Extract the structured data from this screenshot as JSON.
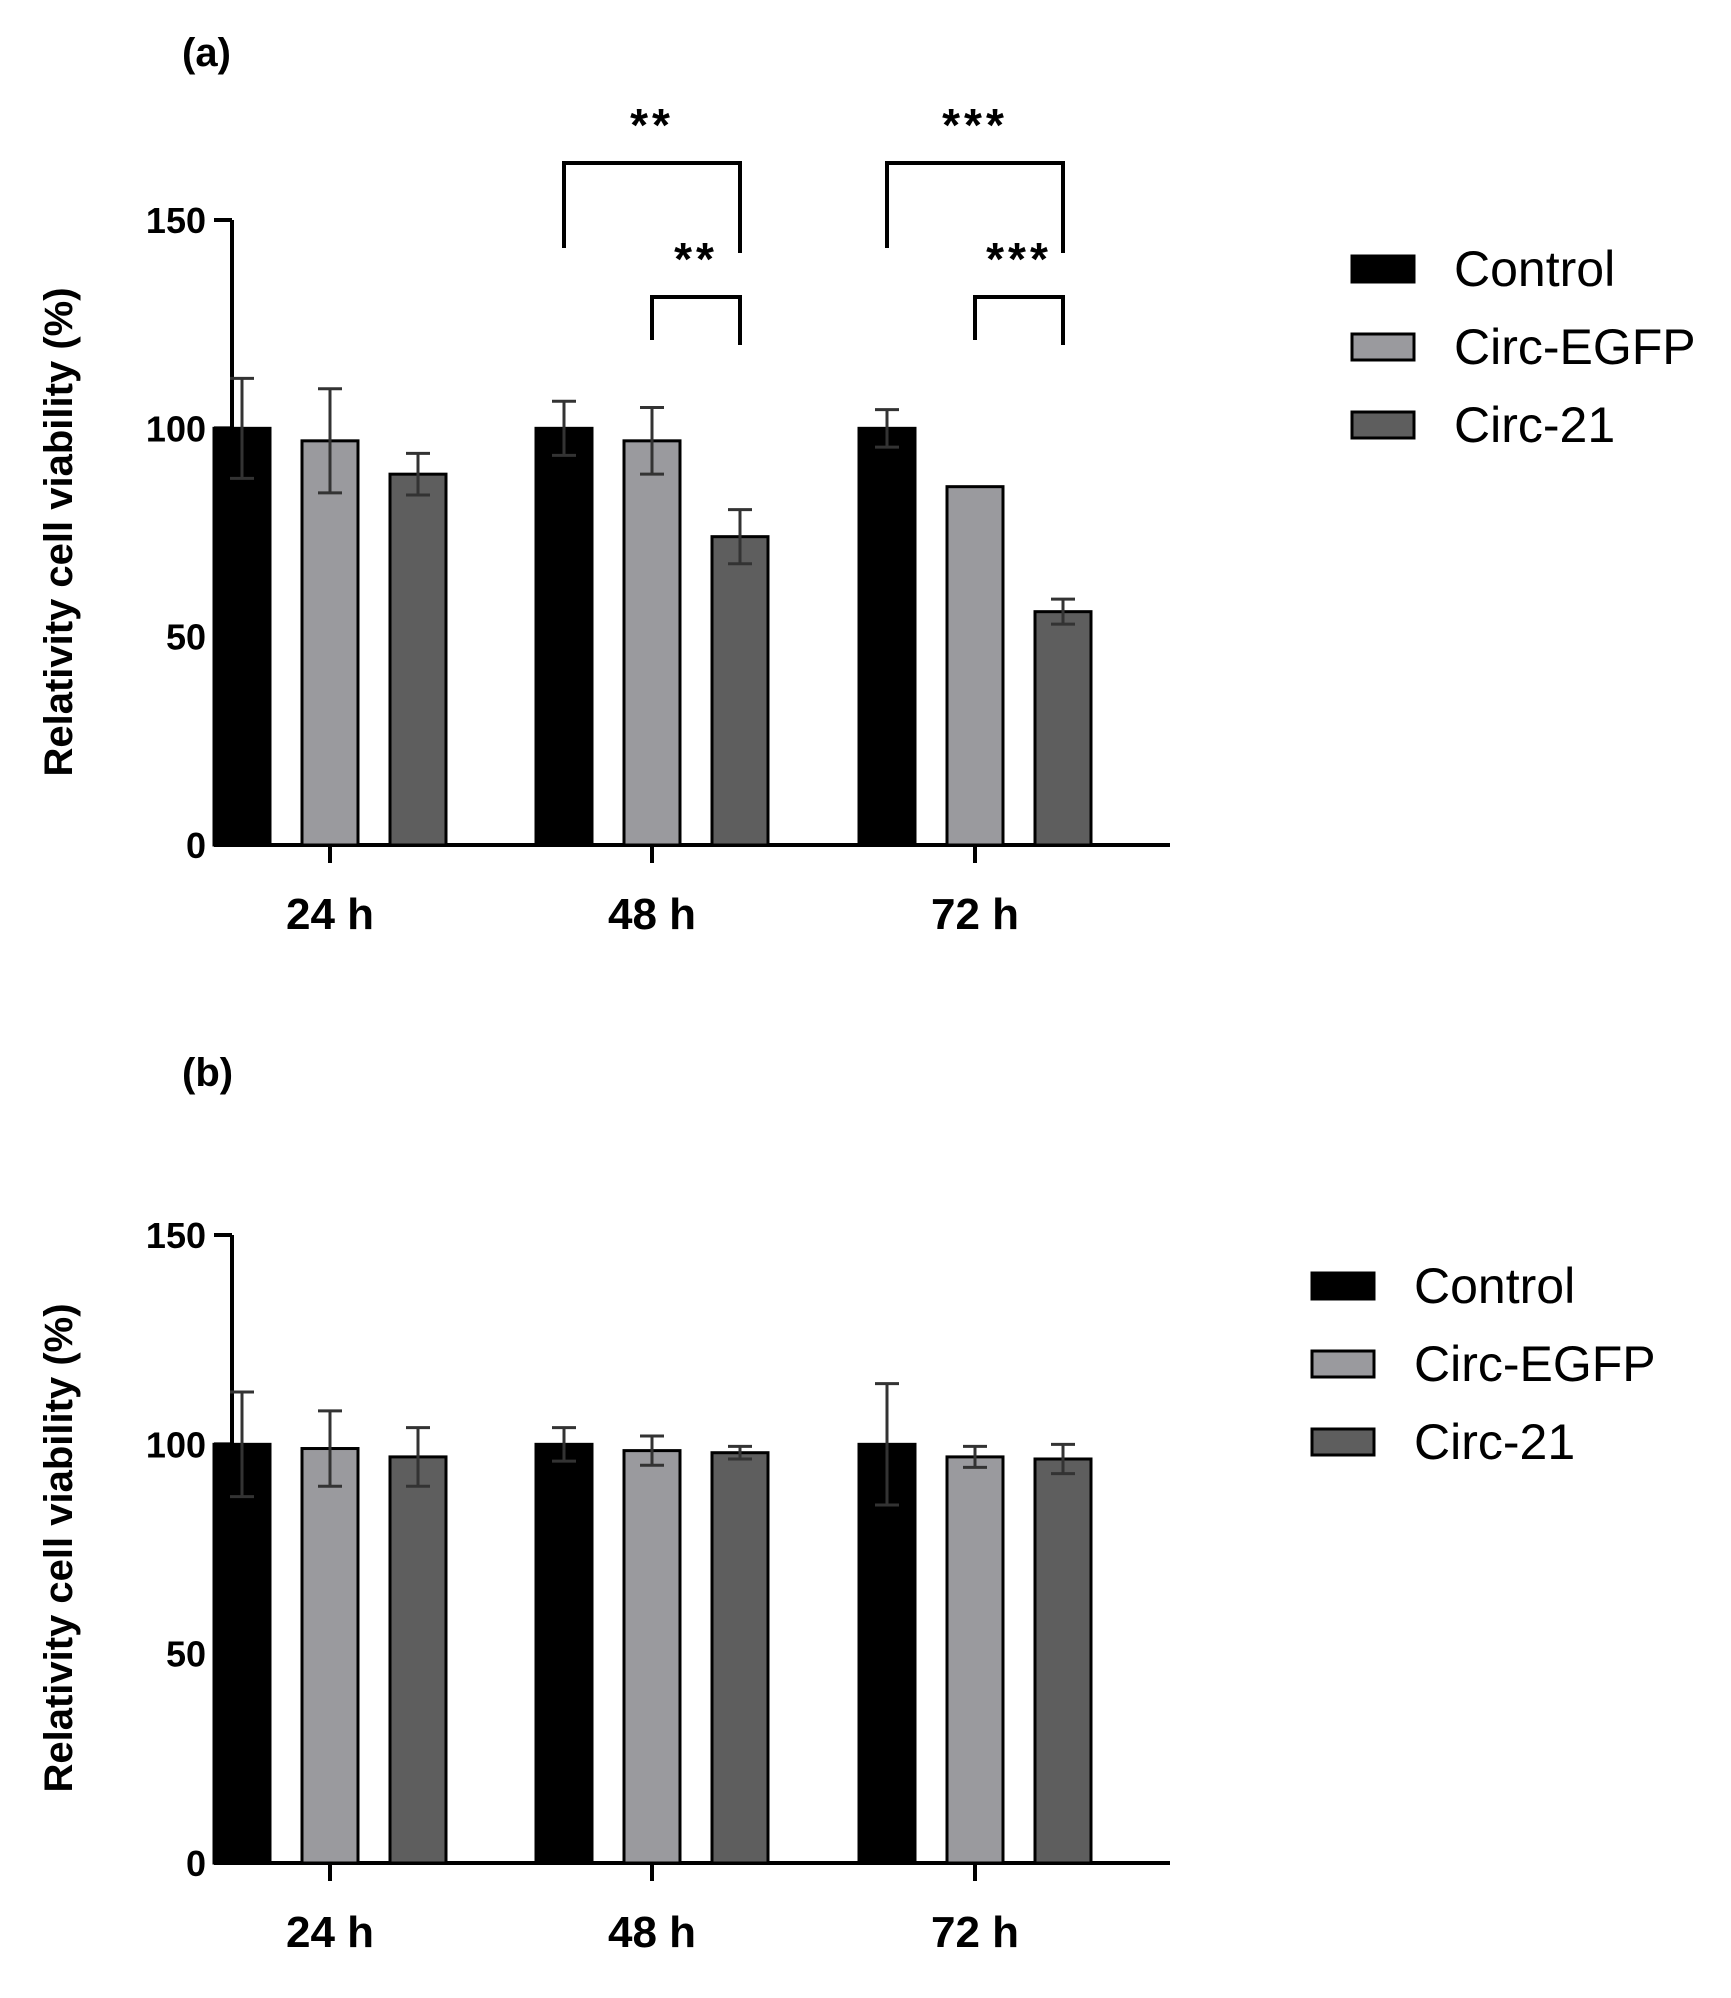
{
  "chart_data": [
    {
      "panel_label": "(a)",
      "type": "bar",
      "categories": [
        "24 h",
        "48 h",
        "72 h"
      ],
      "ylabel": "Relativity cell viability (%)",
      "xlabel": "",
      "ylim": [
        0,
        150
      ],
      "yticks": [
        "0",
        "50",
        "100",
        "150"
      ],
      "legend_position": "right",
      "series": [
        {
          "name": "Control",
          "color": "#000000",
          "values": [
            100,
            100,
            100
          ],
          "errors": [
            12,
            6.5,
            4.5
          ]
        },
        {
          "name": "Circ-EGFP",
          "color": "#9a9a9e",
          "values": [
            97,
            97,
            86
          ],
          "errors": [
            12.5,
            8,
            0
          ]
        },
        {
          "name": "Circ-21",
          "color": "#5e5e5e",
          "values": [
            89,
            74,
            56
          ],
          "errors": [
            5,
            6.5,
            3
          ]
        }
      ],
      "significance": [
        {
          "label": "**",
          "category": "48 h",
          "from_series": 0,
          "to_series": 2,
          "level": "upper"
        },
        {
          "label": "**",
          "category": "48 h",
          "from_series": 1,
          "to_series": 2,
          "level": "lower"
        },
        {
          "label": "***",
          "category": "72 h",
          "from_series": 0,
          "to_series": 2,
          "level": "upper"
        },
        {
          "label": "***",
          "category": "72 h",
          "from_series": 1,
          "to_series": 2,
          "level": "lower"
        }
      ]
    },
    {
      "panel_label": "(b)",
      "type": "bar",
      "categories": [
        "24 h",
        "48 h",
        "72 h"
      ],
      "ylabel": "Relativity cell viability (%)",
      "xlabel": "",
      "ylim": [
        0,
        150
      ],
      "yticks": [
        "0",
        "50",
        "100",
        "150"
      ],
      "legend_position": "right",
      "series": [
        {
          "name": "Control",
          "color": "#000000",
          "values": [
            100,
            100,
            100
          ],
          "errors": [
            12.5,
            4,
            14.5
          ]
        },
        {
          "name": "Circ-EGFP",
          "color": "#9a9a9e",
          "values": [
            99,
            98.5,
            97
          ],
          "errors": [
            9,
            3.5,
            2.5
          ]
        },
        {
          "name": "Circ-21",
          "color": "#5e5e5e",
          "values": [
            97,
            98,
            96.5
          ],
          "errors": [
            7,
            1.5,
            3.5
          ]
        }
      ],
      "significance": []
    }
  ]
}
